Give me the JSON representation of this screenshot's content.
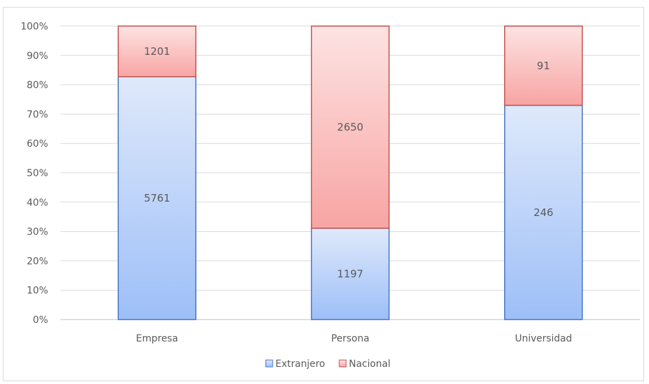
{
  "chart_data": {
    "type": "bar",
    "stacked": "percent",
    "categories": [
      "Empresa",
      "Persona",
      "Universidad"
    ],
    "series": [
      {
        "name": "Extranjero",
        "values": [
          5761,
          1197,
          246
        ],
        "color_top": "#dfe9fb",
        "color_bottom": "#9dbff8",
        "stroke": "#4472c4"
      },
      {
        "name": "Nacional",
        "values": [
          1201,
          2650,
          91
        ],
        "color_top": "#fde3e3",
        "color_bottom": "#f7a5a3",
        "stroke": "#c0504d"
      }
    ],
    "y_ticks": [
      "0%",
      "10%",
      "20%",
      "30%",
      "40%",
      "50%",
      "60%",
      "70%",
      "80%",
      "90%",
      "100%"
    ],
    "ylim": [
      0,
      100
    ],
    "grid": true,
    "legend_position": "bottom",
    "title": "",
    "xlabel": "",
    "ylabel": ""
  }
}
